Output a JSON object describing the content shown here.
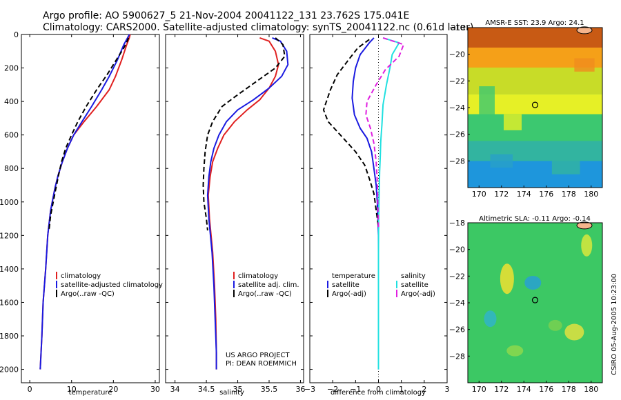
{
  "header": {
    "title_line1": "Argo profile: AO 5900627_5 21-Nov-2004 20041122_131 23.762S 175.041E",
    "title_line2": "Climatology: CARS2000. Satellite-adjusted climatology: synTS_20041122.nc (0.61d later)"
  },
  "colors": {
    "climatology": "#e02020",
    "satellite": "#1a1ae0",
    "argo": "#000000",
    "salinity_satellite": "#20e0e0",
    "salinity_argo": "#e020e0"
  },
  "credits": {
    "project": "US ARGO PROJECT",
    "pi": "PI: DEAN ROEMMICH",
    "side": "CSIRO 05-Aug-2005 10:23:00"
  },
  "chart_data": [
    {
      "type": "line",
      "panel": "temperature",
      "xlabel": "temperature",
      "xlim": [
        -2,
        31
      ],
      "ylim": [
        2080,
        0
      ],
      "y_ticks": [
        0,
        200,
        400,
        600,
        800,
        1000,
        1200,
        1400,
        1600,
        1800,
        2000
      ],
      "x_ticks": [
        0,
        10,
        20,
        30
      ],
      "legend": {
        "placement": "lower-right",
        "entries": [
          "climatology",
          "satellite-adjusted climatology",
          "Argo(..raw -QC)"
        ]
      },
      "series": [
        {
          "name": "climatology",
          "style": "solid",
          "color_key": "climatology",
          "x": [
            24.0,
            23.8,
            23.2,
            22.0,
            20.5,
            19.0,
            16.0,
            13.0,
            10.5,
            9.0,
            7.8,
            6.8,
            6.0,
            5.0,
            4.3,
            3.8,
            3.2,
            2.9,
            2.7,
            2.5
          ],
          "y": [
            0,
            20,
            60,
            150,
            250,
            330,
            430,
            520,
            600,
            680,
            760,
            840,
            920,
            1050,
            1200,
            1400,
            1600,
            1800,
            1900,
            2000
          ]
        },
        {
          "name": "satellite-adjusted climatology",
          "style": "solid",
          "color_key": "satellite",
          "x": [
            23.8,
            23.4,
            22.5,
            21.0,
            19.0,
            17.2,
            14.8,
            12.5,
            10.5,
            9.0,
            7.8,
            6.8,
            6.0,
            5.0,
            4.3,
            3.8,
            3.2,
            2.9,
            2.7,
            2.5
          ],
          "y": [
            0,
            20,
            60,
            150,
            250,
            330,
            430,
            520,
            600,
            680,
            760,
            840,
            920,
            1050,
            1200,
            1400,
            1600,
            1800,
            1900,
            2000
          ]
        },
        {
          "name": "Argo(..raw -QC)",
          "style": "dashed",
          "color_key": "argo",
          "x": [
            23.6,
            23.3,
            22.5,
            20.5,
            18.5,
            16.0,
            13.5,
            11.5,
            10.0,
            8.6,
            7.6,
            6.9,
            6.0,
            5.0,
            4.6
          ],
          "y": [
            20,
            40,
            80,
            160,
            240,
            330,
            430,
            520,
            600,
            680,
            760,
            840,
            950,
            1080,
            1170
          ]
        }
      ]
    },
    {
      "type": "line",
      "panel": "salinity",
      "xlabel": "salinity",
      "xlim": [
        33.85,
        36.05
      ],
      "ylim": [
        2080,
        0
      ],
      "x_ticks": [
        34,
        34.5,
        35,
        35.5,
        36
      ],
      "legend": {
        "placement": "lower-right",
        "entries": [
          "climatology",
          "satellite adj. clim.",
          "Argo(..raw -QC)"
        ]
      },
      "series": [
        {
          "name": "climatology",
          "style": "solid",
          "color_key": "climatology",
          "x": [
            35.35,
            35.5,
            35.6,
            35.65,
            35.6,
            35.5,
            35.35,
            35.15,
            34.95,
            34.78,
            34.68,
            34.6,
            34.56,
            34.53,
            34.55,
            34.6,
            34.63,
            34.65,
            34.66,
            34.66
          ],
          "y": [
            20,
            40,
            100,
            180,
            250,
            320,
            390,
            450,
            520,
            600,
            680,
            760,
            850,
            960,
            1100,
            1300,
            1500,
            1700,
            1900,
            2000
          ]
        },
        {
          "name": "satellite adj. clim.",
          "style": "solid",
          "color_key": "satellite",
          "x": [
            35.55,
            35.68,
            35.78,
            35.8,
            35.7,
            35.5,
            35.25,
            35.0,
            34.82,
            34.7,
            34.62,
            34.57,
            34.54,
            34.52,
            34.54,
            34.59,
            34.62,
            34.64,
            34.66,
            34.66
          ],
          "y": [
            20,
            40,
            100,
            180,
            250,
            320,
            390,
            450,
            520,
            600,
            680,
            760,
            850,
            960,
            1100,
            1300,
            1500,
            1700,
            1900,
            2000
          ]
        },
        {
          "name": "Argo(..raw -QC)",
          "style": "dashed",
          "color_key": "argo",
          "x": [
            35.6,
            35.72,
            35.75,
            35.6,
            35.3,
            35.0,
            34.75,
            34.6,
            34.52,
            34.48,
            34.46,
            34.45,
            34.46,
            34.5,
            34.52
          ],
          "y": [
            20,
            60,
            130,
            200,
            280,
            360,
            430,
            520,
            600,
            700,
            800,
            900,
            1000,
            1100,
            1170
          ]
        }
      ]
    },
    {
      "type": "line",
      "panel": "difference",
      "xlabel": "difference from climatology",
      "xlim": [
        -3,
        3
      ],
      "ylim": [
        2080,
        0
      ],
      "x_ticks": [
        -3,
        -2,
        -1,
        0,
        1,
        2,
        3
      ],
      "legend": {
        "placement": "lower",
        "entries": [
          "temperature",
          "satellite",
          "Argo(-adj)",
          "salinity",
          "satellite",
          "Argo(-adj)"
        ]
      },
      "series": [
        {
          "name": "temperature satellite",
          "style": "solid",
          "color_key": "satellite",
          "x": [
            -0.2,
            -0.4,
            -0.8,
            -1.0,
            -1.1,
            -1.15,
            -1.05,
            -0.8,
            -0.5,
            -0.3,
            -0.2,
            -0.1,
            -0.05,
            0,
            0,
            0,
            0
          ],
          "y": [
            20,
            50,
            120,
            200,
            280,
            380,
            480,
            560,
            620,
            700,
            800,
            900,
            1000,
            1200,
            1500,
            1800,
            2000
          ]
        },
        {
          "name": "temperature Argo(-adj)",
          "style": "dashed",
          "color_key": "argo",
          "x": [
            -0.4,
            -0.9,
            -1.3,
            -1.8,
            -2.1,
            -2.4,
            -2.2,
            -1.8,
            -1.4,
            -1.0,
            -0.6,
            -0.4,
            -0.2,
            -0.1,
            0
          ],
          "y": [
            30,
            80,
            150,
            240,
            330,
            450,
            520,
            580,
            640,
            700,
            780,
            860,
            950,
            1050,
            1150
          ]
        },
        {
          "name": "salinity satellite",
          "style": "solid",
          "color_key": "salinity_satellite",
          "x": [
            0.2,
            0.9,
            0.6,
            0.5,
            0.35,
            0.2,
            0.15,
            0.1,
            0.08,
            0.05,
            0.04,
            0.02,
            0.01,
            0,
            0,
            0
          ],
          "y": [
            20,
            50,
            120,
            200,
            300,
            420,
            540,
            640,
            720,
            820,
            900,
            1000,
            1100,
            1300,
            1600,
            2000
          ]
        },
        {
          "name": "salinity Argo(-adj)",
          "style": "dashed",
          "color_key": "salinity_argo",
          "x": [
            0.2,
            1.1,
            0.9,
            0.3,
            -0.1,
            -0.5,
            -0.55,
            -0.35,
            -0.2,
            -0.1,
            -0.05,
            -0.03,
            0
          ],
          "y": [
            20,
            60,
            130,
            210,
            300,
            400,
            480,
            560,
            650,
            760,
            880,
            1000,
            1150
          ]
        }
      ]
    },
    {
      "type": "heatmap",
      "panel": "sst_map",
      "title": "AMSR-E SST: 23.9 Argo: 24.1",
      "xlim": [
        169,
        181
      ],
      "ylim": [
        -30,
        -18
      ],
      "x_ticks": [
        170,
        172,
        174,
        176,
        178,
        180
      ],
      "y_ticks": [
        -18,
        -20,
        -22,
        -24,
        -26,
        -28
      ],
      "profile_marker": {
        "lon": 175.0,
        "lat": -23.8
      },
      "bands": [
        {
          "from_lat": -18,
          "to_lat": -19.5,
          "color": "#c85a14"
        },
        {
          "from_lat": -19.5,
          "to_lat": -21,
          "color": "#f5a018"
        },
        {
          "from_lat": -21,
          "to_lat": -23,
          "color": "#c8dc28"
        },
        {
          "from_lat": -23,
          "to_lat": -24.5,
          "color": "#e6f026"
        },
        {
          "from_lat": -24.5,
          "to_lat": -26.5,
          "color": "#3cc870"
        },
        {
          "from_lat": -26.5,
          "to_lat": -28,
          "color": "#32b4a0"
        },
        {
          "from_lat": -28,
          "to_lat": -30,
          "color": "#1e96dc"
        }
      ]
    },
    {
      "type": "heatmap",
      "panel": "sla_map",
      "title": "Altimetric SLA: -0.11 Argo: -0.14",
      "xlim": [
        169,
        181
      ],
      "ylim": [
        -30,
        -18
      ],
      "x_ticks": [
        170,
        172,
        174,
        176,
        178,
        180
      ],
      "y_ticks": [
        -18,
        -20,
        -22,
        -24,
        -26,
        -28
      ],
      "profile_marker": {
        "lon": 175.0,
        "lat": -23.8
      },
      "base_color": "#3cc864"
    }
  ]
}
